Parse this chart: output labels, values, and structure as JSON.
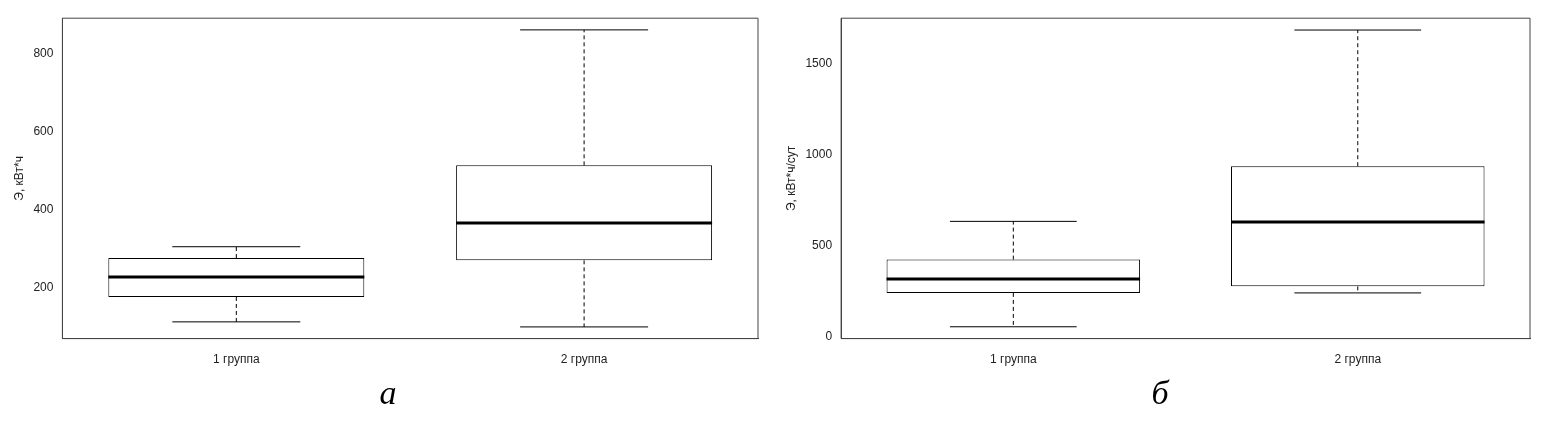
{
  "chart_data": [
    {
      "type": "box",
      "ylabel": "Э, кВт*ч",
      "categories": [
        "1 группа",
        "2 группа"
      ],
      "ylim": [
        69,
        892
      ],
      "yticks": [
        200,
        400,
        600,
        800
      ],
      "grid": false,
      "annotations": [
        "а"
      ],
      "boxes": [
        {
          "low": 112,
          "q1": 176,
          "median": 227,
          "q3": 276,
          "high": 305
        },
        {
          "low": 99,
          "q1": 270,
          "median": 366,
          "q3": 514,
          "high": 862
        }
      ]
    },
    {
      "type": "box",
      "ylabel": "Э, кВт*ч/сут",
      "categories": [
        "1 группа",
        "2 группа"
      ],
      "ylim": [
        -11,
        1749
      ],
      "yticks": [
        0,
        500,
        1000,
        1500
      ],
      "grid": false,
      "annotations": [
        "б"
      ],
      "boxes": [
        {
          "low": 54,
          "q1": 240,
          "median": 316,
          "q3": 423,
          "high": 633
        },
        {
          "low": 240,
          "q1": 276,
          "median": 630,
          "q3": 936,
          "high": 1684
        }
      ]
    }
  ]
}
